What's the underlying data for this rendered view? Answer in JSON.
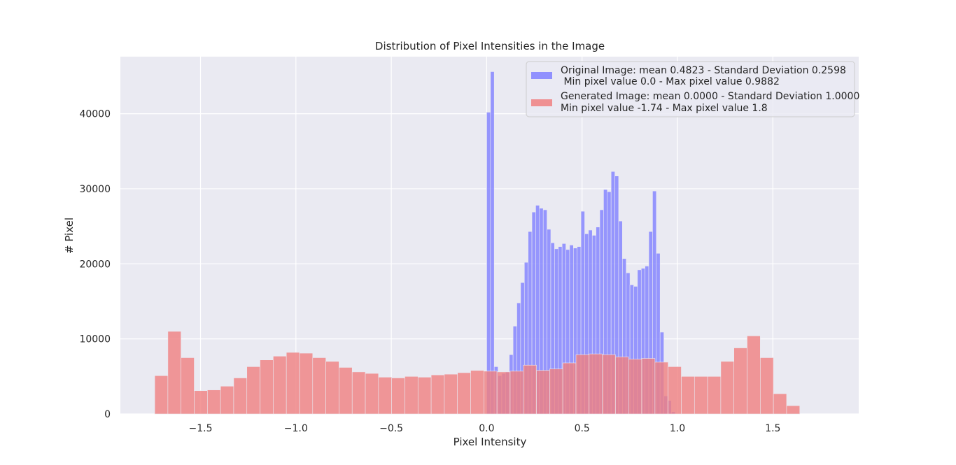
{
  "chart_data": {
    "type": "bar",
    "title": "Distribution of Pixel Intensities in the Image",
    "xlabel": "Pixel Intensity",
    "ylabel": "# Pixel",
    "xlim": [
      -1.92,
      1.95
    ],
    "ylim": [
      0,
      47600
    ],
    "xticks": [
      -1.5,
      -1.0,
      -0.5,
      0.0,
      0.5,
      1.0,
      1.5
    ],
    "xtick_labels": [
      "−1.5",
      "−1.0",
      "−0.5",
      "0.0",
      "0.5",
      "1.0",
      "1.5"
    ],
    "yticks": [
      0,
      10000,
      20000,
      30000,
      40000
    ],
    "ytick_labels": [
      "0",
      "10000",
      "20000",
      "30000",
      "40000"
    ],
    "grid": true,
    "legend_position": "top-right",
    "series": [
      {
        "name": "Original Image: mean 0.4823 - Standard Deviation 0.2598",
        "name_line2": " Min pixel value 0.0 - Max pixel value 0.9882",
        "color": "#8080ff",
        "bin_start": 0.0,
        "bin_width": 0.01976,
        "values": [
          40200,
          45600,
          6300,
          5100,
          5400,
          5600,
          7900,
          11700,
          14800,
          17500,
          20200,
          24300,
          26900,
          27800,
          27400,
          27200,
          24600,
          22800,
          22000,
          22300,
          22700,
          21900,
          22500,
          22100,
          22300,
          27000,
          24000,
          24500,
          23800,
          24900,
          27200,
          29900,
          29600,
          32300,
          31700,
          25700,
          20700,
          18800,
          17200,
          17000,
          19200,
          19400,
          19700,
          24300,
          29700,
          21400,
          10900,
          2400,
          1800,
          300
        ]
      },
      {
        "name": "Generated Image: mean 0.0000 - Standard Deviation 1.0000",
        "name_line2": "Min pixel value -1.74 - Max pixel value 1.8",
        "color": "#f08080",
        "bin_start": -1.74,
        "bin_width": 0.069,
        "values": [
          5100,
          11000,
          7500,
          3100,
          3200,
          3700,
          4800,
          6300,
          7200,
          7700,
          8200,
          8100,
          7500,
          7000,
          6200,
          5600,
          5400,
          4900,
          4800,
          5000,
          4900,
          5200,
          5300,
          5500,
          5800,
          5700,
          5600,
          5700,
          6500,
          5800,
          6000,
          6800,
          7900,
          8000,
          7900,
          7600,
          7300,
          7400,
          6900,
          6300,
          5000,
          5000,
          5000,
          7000,
          8800,
          10400,
          7500,
          2700,
          1100
        ]
      }
    ]
  }
}
